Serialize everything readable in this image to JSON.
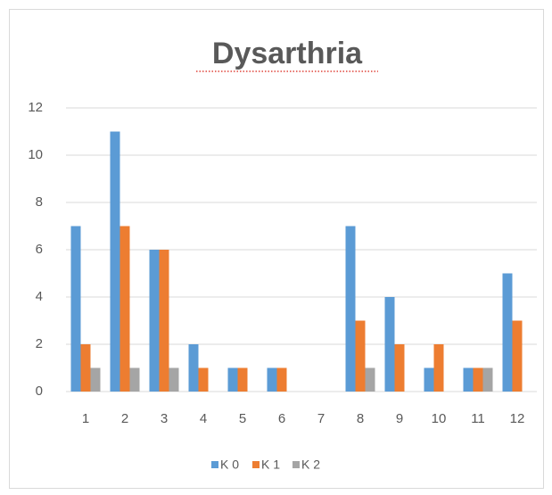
{
  "chart_data": {
    "type": "bar",
    "title": "Dysarthria",
    "categories": [
      "1",
      "2",
      "3",
      "4",
      "5",
      "6",
      "7",
      "8",
      "9",
      "10",
      "11",
      "12"
    ],
    "series": [
      {
        "name": "K 0",
        "color": "#5b9bd5",
        "values": [
          7,
          11,
          6,
          2,
          1,
          1,
          0,
          7,
          4,
          1,
          1,
          5
        ]
      },
      {
        "name": "K 1",
        "color": "#ed7d31",
        "values": [
          2,
          7,
          6,
          1,
          1,
          1,
          0,
          3,
          2,
          2,
          1,
          3
        ]
      },
      {
        "name": "K 2",
        "color": "#a5a5a5",
        "values": [
          1,
          1,
          1,
          0,
          0,
          0,
          0,
          1,
          0,
          0,
          1,
          0
        ]
      }
    ],
    "ylim": [
      0,
      12
    ],
    "yticks": [
      0,
      2,
      4,
      6,
      8,
      10,
      12
    ],
    "grid": true,
    "legend": "bottom"
  }
}
